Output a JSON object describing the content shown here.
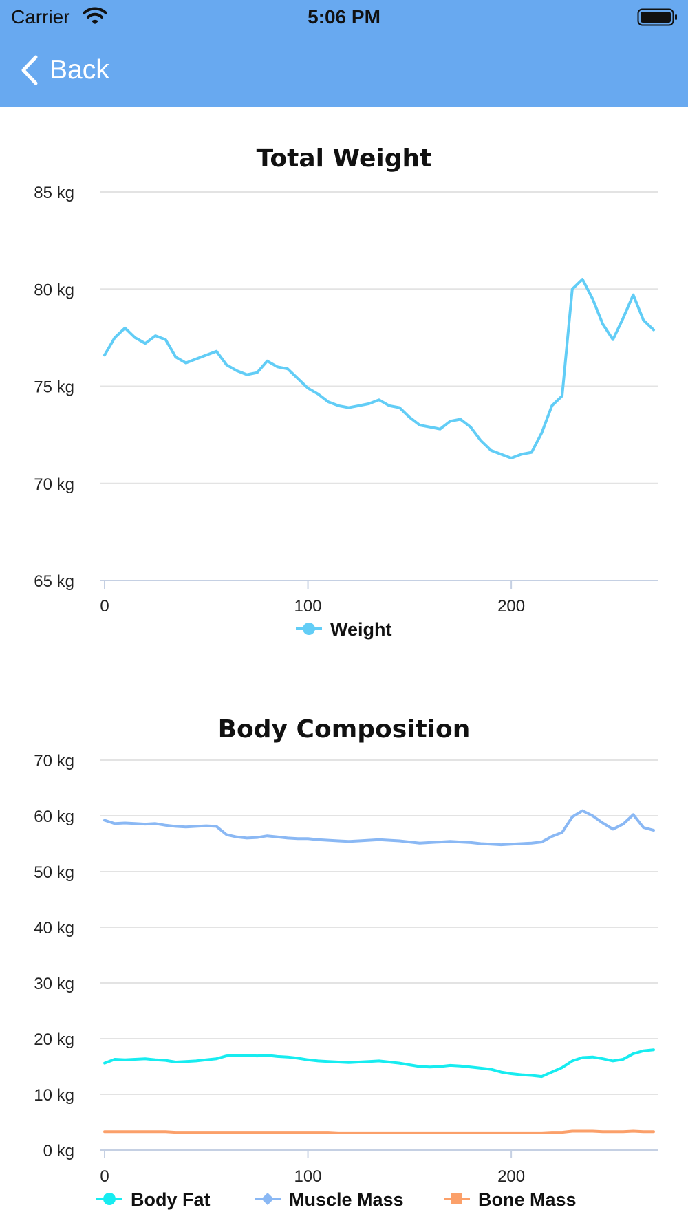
{
  "status_bar": {
    "carrier": "Carrier",
    "time": "5:06 PM"
  },
  "nav": {
    "back_label": "Back"
  },
  "chart_data": [
    {
      "type": "line",
      "title": "Total Weight",
      "xlabel": "",
      "ylabel": "",
      "xlim": [
        0,
        270
      ],
      "ylim": [
        65,
        85
      ],
      "x_ticks": [
        0,
        100,
        200
      ],
      "y_ticks": [
        "65 kg",
        "70 kg",
        "75 kg",
        "80 kg",
        "85 kg"
      ],
      "grid": true,
      "legend": "bottom-center",
      "series": [
        {
          "name": "Weight",
          "color": "#62cdf6",
          "x": [
            0,
            5,
            10,
            15,
            20,
            25,
            30,
            35,
            40,
            45,
            50,
            55,
            60,
            65,
            70,
            75,
            80,
            85,
            90,
            95,
            100,
            105,
            110,
            115,
            120,
            125,
            130,
            135,
            140,
            145,
            150,
            155,
            160,
            165,
            170,
            175,
            180,
            185,
            190,
            195,
            200,
            205,
            210,
            215,
            220,
            225,
            230,
            235,
            240,
            245,
            250,
            255,
            260,
            265,
            270
          ],
          "values": [
            76.6,
            77.5,
            78.0,
            77.5,
            77.2,
            77.6,
            77.4,
            76.5,
            76.2,
            76.4,
            76.6,
            76.8,
            76.1,
            75.8,
            75.6,
            75.7,
            76.3,
            76.0,
            75.9,
            75.4,
            74.9,
            74.6,
            74.2,
            74.0,
            73.9,
            74.0,
            74.1,
            74.3,
            74.0,
            73.9,
            73.4,
            73.0,
            72.9,
            72.8,
            73.2,
            73.3,
            72.9,
            72.2,
            71.7,
            71.5,
            71.3,
            71.5,
            71.6,
            72.6,
            74.0,
            74.5,
            80.0,
            80.5,
            79.5,
            78.2,
            77.4,
            78.5,
            79.7,
            78.4,
            77.9
          ]
        }
      ]
    },
    {
      "type": "line",
      "title": "Body Composition",
      "xlabel": "",
      "ylabel": "",
      "xlim": [
        0,
        270
      ],
      "ylim": [
        0,
        70
      ],
      "x_ticks": [
        0,
        100,
        200
      ],
      "y_ticks": [
        "0 kg",
        "10 kg",
        "20 kg",
        "30 kg",
        "40 kg",
        "50 kg",
        "60 kg",
        "70 kg"
      ],
      "grid": true,
      "legend": "bottom-center",
      "series": [
        {
          "name": "Body Fat",
          "color": "#17ecf0",
          "x": [
            0,
            5,
            10,
            15,
            20,
            25,
            30,
            35,
            40,
            45,
            50,
            55,
            60,
            65,
            70,
            75,
            80,
            85,
            90,
            95,
            100,
            105,
            110,
            115,
            120,
            125,
            130,
            135,
            140,
            145,
            150,
            155,
            160,
            165,
            170,
            175,
            180,
            185,
            190,
            195,
            200,
            205,
            210,
            215,
            220,
            225,
            230,
            235,
            240,
            245,
            250,
            255,
            260,
            265,
            270
          ],
          "values": [
            15.6,
            16.3,
            16.2,
            16.3,
            16.4,
            16.2,
            16.1,
            15.8,
            15.9,
            16.0,
            16.2,
            16.4,
            16.9,
            17.0,
            17.0,
            16.9,
            17.0,
            16.8,
            16.7,
            16.5,
            16.2,
            16.0,
            15.9,
            15.8,
            15.7,
            15.8,
            15.9,
            16.0,
            15.8,
            15.6,
            15.3,
            15.0,
            14.9,
            15.0,
            15.2,
            15.1,
            14.9,
            14.7,
            14.5,
            14.0,
            13.7,
            13.5,
            13.4,
            13.2,
            14.0,
            14.8,
            16.0,
            16.6,
            16.7,
            16.4,
            16.0,
            16.3,
            17.3,
            17.8,
            18.0
          ]
        },
        {
          "name": "Muscle Mass",
          "color": "#8ab8f4",
          "x": [
            0,
            5,
            10,
            15,
            20,
            25,
            30,
            35,
            40,
            45,
            50,
            55,
            60,
            65,
            70,
            75,
            80,
            85,
            90,
            95,
            100,
            105,
            110,
            115,
            120,
            125,
            130,
            135,
            140,
            145,
            150,
            155,
            160,
            165,
            170,
            175,
            180,
            185,
            190,
            195,
            200,
            205,
            210,
            215,
            220,
            225,
            230,
            235,
            240,
            245,
            250,
            255,
            260,
            265,
            270
          ],
          "values": [
            59.2,
            58.6,
            58.7,
            58.6,
            58.5,
            58.6,
            58.3,
            58.1,
            58.0,
            58.1,
            58.2,
            58.1,
            56.6,
            56.2,
            56.0,
            56.1,
            56.4,
            56.2,
            56.0,
            55.9,
            55.9,
            55.7,
            55.6,
            55.5,
            55.4,
            55.5,
            55.6,
            55.7,
            55.6,
            55.5,
            55.3,
            55.1,
            55.2,
            55.3,
            55.4,
            55.3,
            55.2,
            55.0,
            54.9,
            54.8,
            54.9,
            55.0,
            55.1,
            55.3,
            56.3,
            57.0,
            59.8,
            60.9,
            60.0,
            58.7,
            57.6,
            58.5,
            60.2,
            57.9,
            57.4
          ]
        },
        {
          "name": "Bone Mass",
          "color": "#fba06a",
          "x": [
            0,
            5,
            10,
            15,
            20,
            25,
            30,
            35,
            40,
            45,
            50,
            55,
            60,
            65,
            70,
            75,
            80,
            85,
            90,
            95,
            100,
            105,
            110,
            115,
            120,
            125,
            130,
            135,
            140,
            145,
            150,
            155,
            160,
            165,
            170,
            175,
            180,
            185,
            190,
            195,
            200,
            205,
            210,
            215,
            220,
            225,
            230,
            235,
            240,
            245,
            250,
            255,
            260,
            265,
            270
          ],
          "values": [
            3.3,
            3.3,
            3.3,
            3.3,
            3.3,
            3.3,
            3.3,
            3.2,
            3.2,
            3.2,
            3.2,
            3.2,
            3.2,
            3.2,
            3.2,
            3.2,
            3.2,
            3.2,
            3.2,
            3.2,
            3.2,
            3.2,
            3.2,
            3.1,
            3.1,
            3.1,
            3.1,
            3.1,
            3.1,
            3.1,
            3.1,
            3.1,
            3.1,
            3.1,
            3.1,
            3.1,
            3.1,
            3.1,
            3.1,
            3.1,
            3.1,
            3.1,
            3.1,
            3.1,
            3.2,
            3.2,
            3.4,
            3.4,
            3.4,
            3.3,
            3.3,
            3.3,
            3.4,
            3.3,
            3.3
          ]
        }
      ]
    }
  ]
}
